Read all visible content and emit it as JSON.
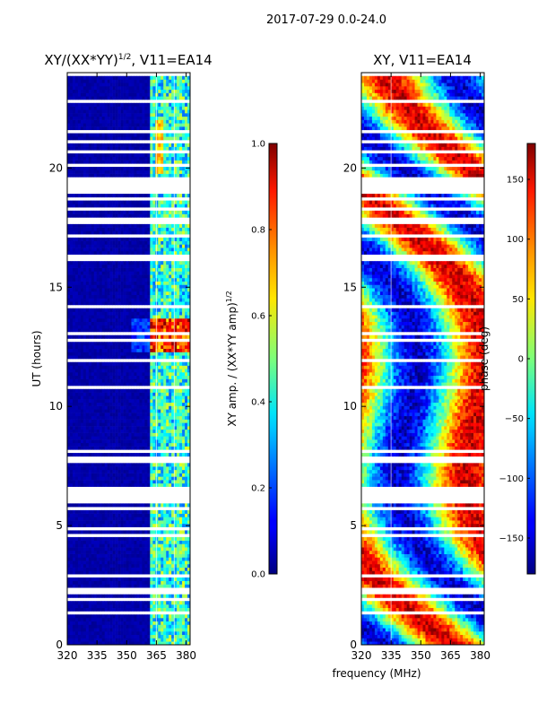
{
  "figure": {
    "suptitle": "2017-07-29 0.0-24.0"
  },
  "chart_data": [
    {
      "type": "heatmap",
      "title": "XY/(XX*YY)",
      "title_exponent": "1/2",
      "title_suffix": ", V11=EA14",
      "xlabel": "",
      "ylabel": "UT (hours)",
      "xlim": [
        320,
        382
      ],
      "ylim": [
        0,
        24
      ],
      "xticks": [
        320,
        335,
        350,
        365,
        380
      ],
      "yticks": [
        0,
        5,
        10,
        15,
        20
      ],
      "colorbar": {
        "label": "XY amp. / (XX*YY amp)",
        "label_exponent": "1/2",
        "range": [
          0.0,
          1.0
        ],
        "ticks": [
          "0.0",
          "0.2",
          "0.4",
          "0.6",
          "0.8",
          "1.0"
        ],
        "colormap": "jet"
      }
    },
    {
      "type": "heatmap",
      "title": "XY, V11=EA14",
      "xlabel": "frequency (MHz)",
      "ylabel": "",
      "xlim": [
        320,
        382
      ],
      "ylim": [
        0,
        24
      ],
      "xticks": [
        320,
        335,
        350,
        365,
        380
      ],
      "yticks": [
        0,
        5,
        10,
        15,
        20
      ],
      "colorbar": {
        "label": "phase (deg)",
        "range": [
          -180,
          180
        ],
        "ticks": [
          "-150",
          "-100",
          "-50",
          "0",
          "50",
          "100",
          "150"
        ],
        "colormap": "jet"
      }
    }
  ]
}
